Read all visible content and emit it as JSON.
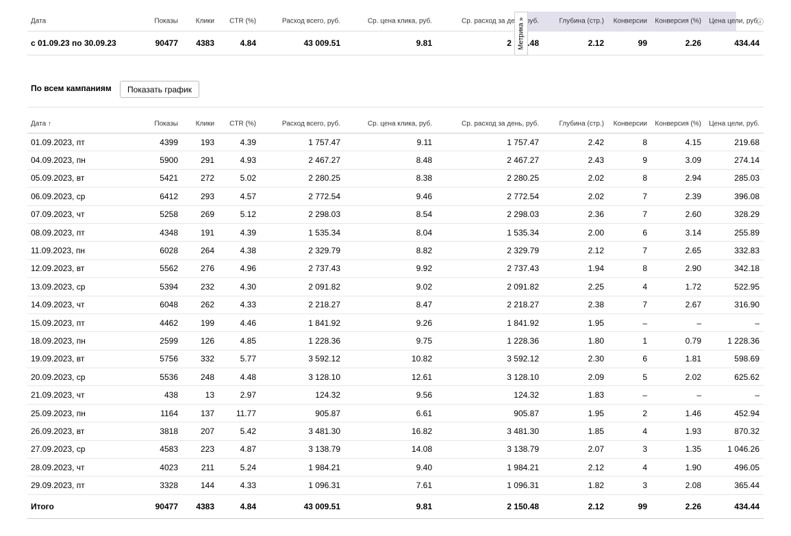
{
  "columns": [
    "Дата",
    "Показы",
    "Клики",
    "CTR (%)",
    "Расход всего, руб.",
    "Ср. цена клика, руб.",
    "Ср. расход за день, руб.",
    "Глубина (стр.)",
    "Конверсии",
    "Конверсия (%)",
    "Цена цели, руб."
  ],
  "columns_main": [
    "Дата ↑",
    "Показы",
    "Клики",
    "CTR (%)",
    "Расход всего, руб.",
    "Ср. цена клика, руб.",
    "Ср. расход за день, руб.",
    "Глубина (стр.)",
    "Конверсии",
    "Конверсия (%)",
    "Цена цели, руб."
  ],
  "metrika_label": "Метрика »",
  "info_icon": "ⓘ",
  "summary": [
    "с 01.09.23 по 30.09.23",
    "90477",
    "4383",
    "4.84",
    "43 009.51",
    "9.81",
    "2 150.48",
    "2.12",
    "99",
    "2.26",
    "434.44"
  ],
  "section_title": "По всем кампаниям",
  "show_chart_button": "Показать график",
  "rows": [
    [
      "01.09.2023, пт",
      "4399",
      "193",
      "4.39",
      "1 757.47",
      "9.11",
      "1 757.47",
      "2.42",
      "8",
      "4.15",
      "219.68"
    ],
    [
      "04.09.2023, пн",
      "5900",
      "291",
      "4.93",
      "2 467.27",
      "8.48",
      "2 467.27",
      "2.43",
      "9",
      "3.09",
      "274.14"
    ],
    [
      "05.09.2023, вт",
      "5421",
      "272",
      "5.02",
      "2 280.25",
      "8.38",
      "2 280.25",
      "2.02",
      "8",
      "2.94",
      "285.03"
    ],
    [
      "06.09.2023, ср",
      "6412",
      "293",
      "4.57",
      "2 772.54",
      "9.46",
      "2 772.54",
      "2.02",
      "7",
      "2.39",
      "396.08"
    ],
    [
      "07.09.2023, чт",
      "5258",
      "269",
      "5.12",
      "2 298.03",
      "8.54",
      "2 298.03",
      "2.36",
      "7",
      "2.60",
      "328.29"
    ],
    [
      "08.09.2023, пт",
      "4348",
      "191",
      "4.39",
      "1 535.34",
      "8.04",
      "1 535.34",
      "2.00",
      "6",
      "3.14",
      "255.89"
    ],
    [
      "11.09.2023, пн",
      "6028",
      "264",
      "4.38",
      "2 329.79",
      "8.82",
      "2 329.79",
      "2.12",
      "7",
      "2.65",
      "332.83"
    ],
    [
      "12.09.2023, вт",
      "5562",
      "276",
      "4.96",
      "2 737.43",
      "9.92",
      "2 737.43",
      "1.94",
      "8",
      "2.90",
      "342.18"
    ],
    [
      "13.09.2023, ср",
      "5394",
      "232",
      "4.30",
      "2 091.82",
      "9.02",
      "2 091.82",
      "2.25",
      "4",
      "1.72",
      "522.95"
    ],
    [
      "14.09.2023, чт",
      "6048",
      "262",
      "4.33",
      "2 218.27",
      "8.47",
      "2 218.27",
      "2.38",
      "7",
      "2.67",
      "316.90"
    ],
    [
      "15.09.2023, пт",
      "4462",
      "199",
      "4.46",
      "1 841.92",
      "9.26",
      "1 841.92",
      "1.95",
      "–",
      "–",
      "–"
    ],
    [
      "18.09.2023, пн",
      "2599",
      "126",
      "4.85",
      "1 228.36",
      "9.75",
      "1 228.36",
      "1.80",
      "1",
      "0.79",
      "1 228.36"
    ],
    [
      "19.09.2023, вт",
      "5756",
      "332",
      "5.77",
      "3 592.12",
      "10.82",
      "3 592.12",
      "2.30",
      "6",
      "1.81",
      "598.69"
    ],
    [
      "20.09.2023, ср",
      "5536",
      "248",
      "4.48",
      "3 128.10",
      "12.61",
      "3 128.10",
      "2.09",
      "5",
      "2.02",
      "625.62"
    ],
    [
      "21.09.2023, чт",
      "438",
      "13",
      "2.97",
      "124.32",
      "9.56",
      "124.32",
      "1.83",
      "–",
      "–",
      "–"
    ],
    [
      "25.09.2023, пн",
      "1164",
      "137",
      "11.77",
      "905.87",
      "6.61",
      "905.87",
      "1.95",
      "2",
      "1.46",
      "452.94"
    ],
    [
      "26.09.2023, вт",
      "3818",
      "207",
      "5.42",
      "3 481.30",
      "16.82",
      "3 481.30",
      "1.85",
      "4",
      "1.93",
      "870.32"
    ],
    [
      "27.09.2023, ср",
      "4583",
      "223",
      "4.87",
      "3 138.79",
      "14.08",
      "3 138.79",
      "2.07",
      "3",
      "1.35",
      "1 046.26"
    ],
    [
      "28.09.2023, чт",
      "4023",
      "211",
      "5.24",
      "1 984.21",
      "9.40",
      "1 984.21",
      "2.12",
      "4",
      "1.90",
      "496.05"
    ],
    [
      "29.09.2023, пт",
      "3328",
      "144",
      "4.33",
      "1 096.31",
      "7.61",
      "1 096.31",
      "1.82",
      "3",
      "2.08",
      "365.44"
    ]
  ],
  "total": [
    "Итого",
    "90477",
    "4383",
    "4.84",
    "43 009.51",
    "9.81",
    "2 150.48",
    "2.12",
    "99",
    "2.26",
    "434.44"
  ],
  "colors": {
    "metrika_bg": "#e3e0ee",
    "row_border": "#e6e6e6"
  }
}
